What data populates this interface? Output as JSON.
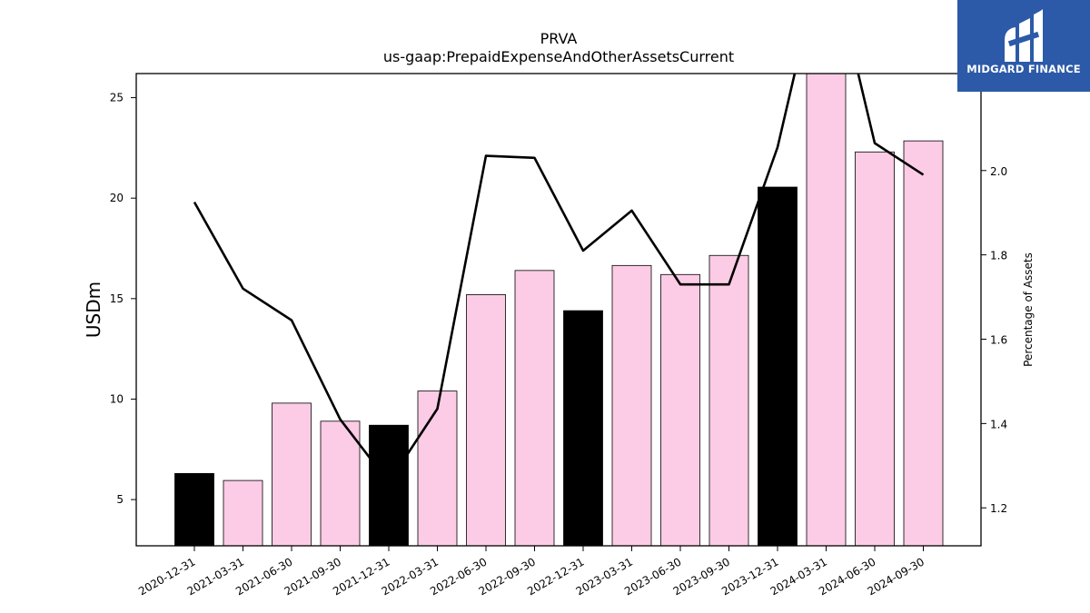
{
  "chart_data": {
    "type": "bar",
    "title": "PRVA",
    "subtitle": "us-gaap:PrepaidExpenseAndOtherAssetsCurrent",
    "ylabel": "USDm",
    "y2label": "Percentage of Assets",
    "categories": [
      "2020-12-31",
      "2021-03-31",
      "2021-06-30",
      "2021-09-30",
      "2021-12-31",
      "2022-03-31",
      "2022-06-30",
      "2022-09-30",
      "2022-12-31",
      "2023-03-31",
      "2023-06-30",
      "2023-09-30",
      "2023-12-31",
      "2024-03-31",
      "2024-06-30",
      "2024-09-30"
    ],
    "values": [
      6.3,
      5.95,
      9.8,
      8.9,
      8.7,
      10.4,
      15.2,
      16.4,
      14.4,
      16.65,
      16.2,
      17.15,
      20.55,
      26.5,
      22.3,
      22.85
    ],
    "bar_colors": [
      "#000000",
      "#fccce6",
      "#fccce6",
      "#fccce6",
      "#000000",
      "#fccce6",
      "#fccce6",
      "#fccce6",
      "#000000",
      "#fccce6",
      "#fccce6",
      "#fccce6",
      "#000000",
      "#fccce6",
      "#fccce6",
      "#fccce6"
    ],
    "line_values": [
      1.925,
      1.72,
      1.645,
      1.41,
      1.26,
      1.435,
      2.035,
      2.03,
      1.81,
      1.905,
      1.73,
      1.73,
      2.055,
      2.55,
      2.065,
      1.99
    ],
    "ylim": [
      2.7,
      26.2
    ],
    "y_ticks": [
      5,
      10,
      15,
      20,
      25
    ],
    "y2lim": [
      1.11,
      2.23
    ],
    "y2_ticks": [
      1.2,
      1.4,
      1.6,
      1.8,
      2.0
    ],
    "grid": false,
    "legend": "none"
  },
  "logo": {
    "text": "MIDGARD FINANCE",
    "bg_color": "#2c5aa8"
  }
}
